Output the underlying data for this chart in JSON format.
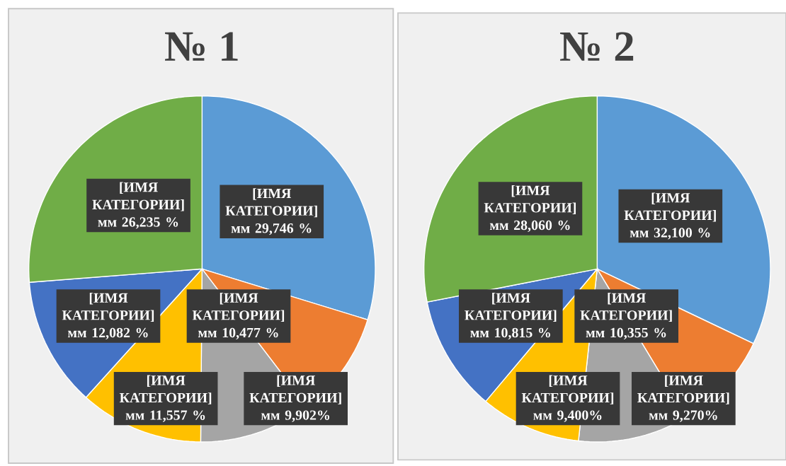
{
  "chart_data": [
    {
      "type": "pie",
      "title": "№ 1",
      "categories": [
        "[ИМЯ КАТЕГОРИИ]",
        "[ИМЯ КАТЕГОРИИ]",
        "[ИМЯ КАТЕГОРИИ]",
        "[ИМЯ КАТЕГОРИИ]",
        "[ИМЯ КАТЕГОРИИ]",
        "[ИМЯ КАТЕГОРИИ]"
      ],
      "values": [
        29.746,
        9.902,
        10.477,
        11.557,
        12.082,
        26.235
      ],
      "colors": [
        "#5b9bd5",
        "#ed7d31",
        "#a5a5a5",
        "#ffc000",
        "#4472c4",
        "#70ad47"
      ],
      "value_labels": [
        "мм 29,746 %",
        "мм 9,902%",
        "мм 10,477 %",
        "мм 11,557 %",
        "мм 12,082 %",
        "мм 26,235 %"
      ]
    },
    {
      "type": "pie",
      "title": "№ 2",
      "categories": [
        "[ИМЯ КАТЕГОРИИ]",
        "[ИМЯ КАТЕГОРИИ]",
        "[ИМЯ КАТЕГОРИИ]",
        "[ИМЯ КАТЕГОРИИ]",
        "[ИМЯ КАТЕГОРИИ]",
        "[ИМЯ КАТЕГОРИИ]"
      ],
      "values": [
        32.1,
        9.27,
        10.355,
        9.4,
        10.815,
        28.06
      ],
      "colors": [
        "#5b9bd5",
        "#ed7d31",
        "#a5a5a5",
        "#ffc000",
        "#4472c4",
        "#70ad47"
      ],
      "value_labels": [
        "мм 32,100 %",
        "мм 9,270%",
        "мм 10,355 %",
        "мм 9,400%",
        "мм 10,815 %",
        "мм 28,060 %"
      ]
    }
  ]
}
